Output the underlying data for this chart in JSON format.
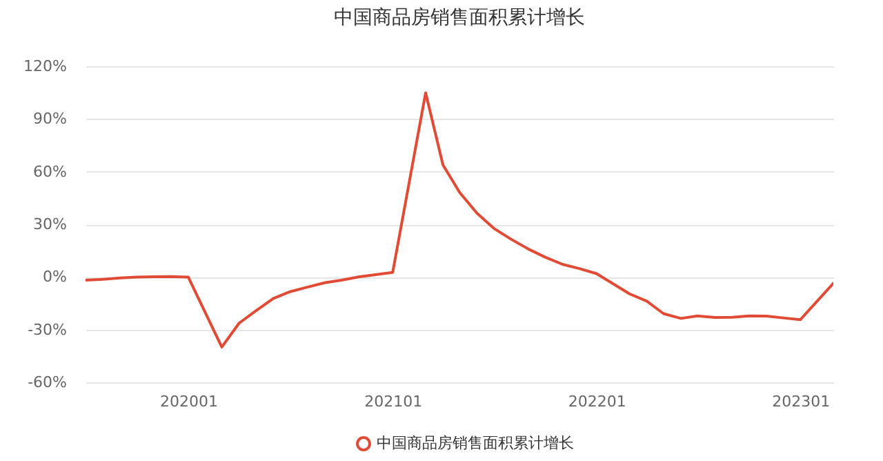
{
  "chart_data": {
    "type": "line",
    "title": "中国商品房销售面积累计增长",
    "x": [
      "2019-07",
      "2019-08",
      "2019-09",
      "2019-10",
      "2019-11",
      "2019-12",
      "2020-01",
      "2020-03",
      "2020-04",
      "2020-05",
      "2020-06",
      "2020-07",
      "2020-08",
      "2020-09",
      "2020-10",
      "2020-11",
      "2020-12",
      "2021-01",
      "2021-03",
      "2021-04",
      "2021-05",
      "2021-06",
      "2021-07",
      "2021-08",
      "2021-09",
      "2021-10",
      "2021-11",
      "2021-12",
      "2022-01",
      "2022-03",
      "2022-04",
      "2022-05",
      "2022-06",
      "2022-07",
      "2022-08",
      "2022-09",
      "2022-10",
      "2022-11",
      "2022-12",
      "2023-01",
      "2023-03"
    ],
    "series": [
      {
        "name": "中国商品房销售面积累计增长",
        "color": "#e14b36",
        "values": [
          -1.8,
          -1.3,
          -0.6,
          -0.1,
          0.1,
          0.2,
          -0.1,
          -39.9,
          -26.3,
          -19.3,
          -12.3,
          -8.4,
          -5.8,
          -3.3,
          -1.8,
          0.0,
          1.3,
          2.6,
          104.9,
          63.8,
          48.1,
          36.3,
          27.7,
          21.5,
          15.9,
          11.3,
          7.2,
          4.8,
          1.9,
          -9.6,
          -13.8,
          -20.9,
          -23.6,
          -22.2,
          -23.1,
          -23.0,
          -22.2,
          -22.3,
          -23.3,
          -24.3,
          -3.6
        ]
      }
    ],
    "xlim": [
      "2019-07",
      "2023-03"
    ],
    "xticks": [
      {
        "value": "2020-01",
        "label": "202001"
      },
      {
        "value": "2021-01",
        "label": "202101"
      },
      {
        "value": "2022-01",
        "label": "202201"
      },
      {
        "value": "2023-01",
        "label": "202301"
      }
    ],
    "ylim": [
      -60,
      120
    ],
    "yticks": [
      {
        "value": -60,
        "label": "-60%"
      },
      {
        "value": -30,
        "label": "-30%"
      },
      {
        "value": 0,
        "label": "0%"
      },
      {
        "value": 30,
        "label": "30%"
      },
      {
        "value": 60,
        "label": "60%"
      },
      {
        "value": 90,
        "label": "90%"
      },
      {
        "value": 120,
        "label": "120%"
      }
    ],
    "grid": "y",
    "legend": "bottom"
  }
}
